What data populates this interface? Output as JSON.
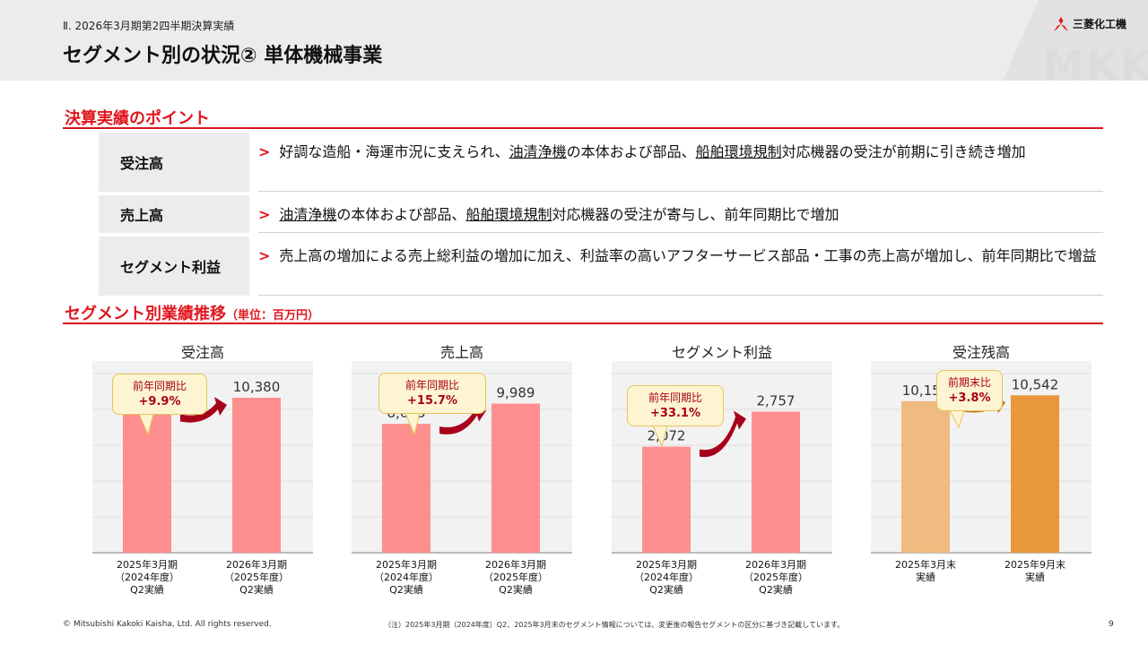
{
  "header": {
    "subtitle": "Ⅱ. 2026年3月期第2四半期決算実績",
    "title": "セグメント別の状況② 単体機械事業",
    "company": "三菱化工機",
    "watermark": "MKK"
  },
  "points": {
    "heading": "決算実績のポイント",
    "rows": [
      {
        "label": "受注高",
        "parts": [
          "好調な造船・海運市況に支えられ、",
          "油清浄機",
          "の本体および部品、",
          "船舶環境規制",
          "対応機器の受注が前期に引き続き増加"
        ]
      },
      {
        "label": "売上高",
        "parts": [
          "",
          "油清浄機",
          "の本体および部品、",
          "船舶環境規制",
          "対応機器の受注が寄与し、前年同期比で増加"
        ]
      },
      {
        "label": "セグメント利益",
        "parts": [
          "売上高の増加による売上総利益の増加に加え、利益率の高いアフターサービス部品・工事の売上高が増加し、前年同期比で増益",
          "",
          "",
          "",
          ""
        ]
      }
    ]
  },
  "trend": {
    "heading": "セグメント別業績推移",
    "unit": "（単位：百万円）"
  },
  "colors": {
    "accent": "#e0161e",
    "bar_pink": "#ff8f8f",
    "bar_orange_light": "#f0bb80",
    "bar_orange": "#e8973a",
    "arrow_red": "#a8001a",
    "arrow_orange": "#c87520"
  },
  "chart_data": [
    {
      "type": "bar",
      "title": "受注高",
      "categories": [
        "2025年3月期\n（2024年度）\nQ2実績",
        "2026年3月期\n（2025年度）\nQ2実績"
      ],
      "values": [
        9447,
        10380
      ],
      "value_labels": [
        "9,447",
        "10,380"
      ],
      "callout": {
        "label": "前年同期比",
        "value": "+9.9%"
      },
      "ylim": [
        0,
        12000
      ],
      "grid": true
    },
    {
      "type": "bar",
      "title": "売上高",
      "categories": [
        "2025年3月期\n（2024年度）\nQ2実績",
        "2026年3月期\n（2025年度）\nQ2実績"
      ],
      "values": [
        8633,
        9989
      ],
      "value_labels": [
        "8,633",
        "9,989"
      ],
      "callout": {
        "label": "前年同期比",
        "value": "+15.7%"
      },
      "ylim": [
        0,
        12000
      ],
      "grid": true
    },
    {
      "type": "bar",
      "title": "セグメント利益",
      "categories": [
        "2025年3月期\n（2024年度）\nQ2実績",
        "2026年3月期\n（2025年度）\nQ2実績"
      ],
      "values": [
        2072,
        2757
      ],
      "value_labels": [
        "2,072",
        "2,757"
      ],
      "callout": {
        "label": "前年同期比",
        "value": "+33.1%"
      },
      "ylim": [
        0,
        3500
      ],
      "grid": true
    },
    {
      "type": "bar",
      "title": "受注残高",
      "categories": [
        "2025年3月末\n実績",
        "2025年9月末\n実績"
      ],
      "values": [
        10152,
        10542
      ],
      "value_labels": [
        "10,152",
        "10,542"
      ],
      "callout": {
        "label": "前期末比",
        "value": "+3.8%"
      },
      "ylim": [
        0,
        12000
      ],
      "grid": true
    }
  ],
  "footer": {
    "copyright": "© Mitsubishi Kakoki Kaisha, Ltd. All rights reserved.",
    "note": "（注）2025年3月期（2024年度）Q2、2025年3月末のセグメント情報については、変更後の報告セグメントの区分に基づき記載しています。",
    "page": "9"
  }
}
